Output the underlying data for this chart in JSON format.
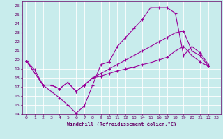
{
  "xlabel": "Windchill (Refroidissement éolien,°C)",
  "bg_color": "#c8ecec",
  "line_color": "#990099",
  "grid_color": "#ffffff",
  "xlim": [
    -0.5,
    23.5
  ],
  "ylim": [
    14,
    26.5
  ],
  "xticks": [
    0,
    1,
    2,
    3,
    4,
    5,
    6,
    7,
    8,
    9,
    10,
    11,
    12,
    13,
    14,
    15,
    16,
    17,
    18,
    19,
    20,
    21,
    22,
    23
  ],
  "yticks": [
    14,
    15,
    16,
    17,
    18,
    19,
    20,
    21,
    22,
    23,
    24,
    25,
    26
  ],
  "line1_x": [
    0,
    1,
    2,
    3,
    4,
    5,
    6,
    7,
    8,
    9,
    10,
    11,
    12,
    13,
    14,
    15,
    16,
    17,
    18,
    19,
    20,
    21,
    22
  ],
  "line1_y": [
    19.9,
    18.9,
    17.2,
    16.5,
    15.8,
    15.0,
    14.1,
    14.9,
    17.2,
    19.5,
    19.8,
    21.5,
    22.5,
    23.5,
    24.5,
    25.8,
    25.8,
    25.8,
    25.2,
    20.5,
    21.5,
    20.8,
    19.5
  ],
  "line2_x": [
    0,
    2,
    3,
    4,
    5,
    6,
    7,
    8,
    9,
    10,
    11,
    12,
    13,
    14,
    15,
    16,
    17,
    18,
    19,
    20,
    21,
    22
  ],
  "line2_y": [
    19.9,
    17.2,
    17.2,
    16.8,
    17.5,
    16.5,
    17.2,
    18.0,
    18.5,
    19.0,
    19.5,
    20.0,
    20.5,
    21.0,
    21.5,
    22.0,
    22.5,
    23.0,
    23.2,
    21.0,
    20.5,
    19.3
  ],
  "line3_x": [
    0,
    2,
    3,
    4,
    5,
    6,
    7,
    8,
    9,
    10,
    11,
    12,
    13,
    14,
    15,
    16,
    17,
    18,
    19,
    20,
    21,
    22
  ],
  "line3_y": [
    19.9,
    17.2,
    17.2,
    16.8,
    17.5,
    16.5,
    17.2,
    18.0,
    18.2,
    18.5,
    18.8,
    19.0,
    19.2,
    19.5,
    19.7,
    20.0,
    20.3,
    21.0,
    21.5,
    20.5,
    19.8,
    19.3
  ]
}
